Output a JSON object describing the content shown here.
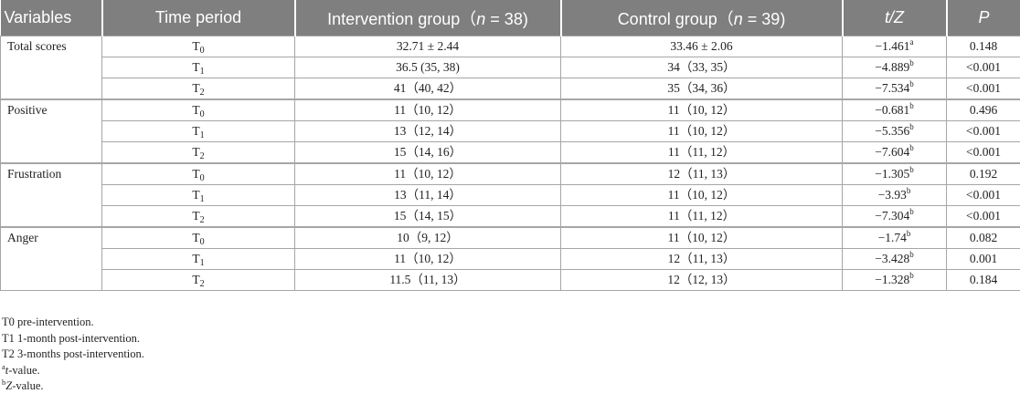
{
  "headers": {
    "variables": "Variables",
    "time_period": "Time period",
    "intervention": "Intervention group（",
    "intervention_n": "n",
    "intervention_count": " = 38)",
    "control": "Control group（",
    "control_n": "n",
    "control_count": " = 39)",
    "tz": "t/Z",
    "p": "P"
  },
  "groups": [
    {
      "name": "Total scores",
      "rows": [
        {
          "t": "T",
          "tsub": "0",
          "intervention": "32.71 ± 2.44",
          "control": "33.46 ± 2.06",
          "tz": "−1.461",
          "tzsup": "a",
          "p": "0.148"
        },
        {
          "t": "T",
          "tsub": "1",
          "intervention": "36.5 (35, 38)",
          "control": "34（33, 35）",
          "tz": "−4.889",
          "tzsup": "b",
          "p": "<0.001"
        },
        {
          "t": "T",
          "tsub": "2",
          "intervention": "41（40, 42）",
          "control": "35（34, 36）",
          "tz": "−7.534",
          "tzsup": "b",
          "p": "<0.001"
        }
      ]
    },
    {
      "name": "Positive",
      "rows": [
        {
          "t": "T",
          "tsub": "0",
          "intervention": "11（10, 12）",
          "control": "11（10, 12）",
          "tz": "−0.681",
          "tzsup": "b",
          "p": "0.496"
        },
        {
          "t": "T",
          "tsub": "1",
          "intervention": "13（12, 14）",
          "control": "11（10, 12）",
          "tz": "−5.356",
          "tzsup": "b",
          "p": "<0.001"
        },
        {
          "t": "T",
          "tsub": "2",
          "intervention": "15（14, 16）",
          "control": "11（11, 12）",
          "tz": "−7.604",
          "tzsup": "b",
          "p": "<0.001"
        }
      ]
    },
    {
      "name": "Frustration",
      "rows": [
        {
          "t": "T",
          "tsub": "0",
          "intervention": "11（10, 12）",
          "control": "12（11, 13）",
          "tz": "−1.305",
          "tzsup": "b",
          "p": "0.192"
        },
        {
          "t": "T",
          "tsub": "1",
          "intervention": "13（11, 14）",
          "control": "11（10, 12）",
          "tz": "−3.93",
          "tzsup": "b",
          "p": "<0.001"
        },
        {
          "t": "T",
          "tsub": "2",
          "intervention": "15（14, 15）",
          "control": "11（11, 12）",
          "tz": "−7.304",
          "tzsup": "b",
          "p": "<0.001"
        }
      ]
    },
    {
      "name": "Anger",
      "rows": [
        {
          "t": "T",
          "tsub": "0",
          "intervention": "10（9, 12）",
          "control": "11（10, 12）",
          "tz": "−1.74",
          "tzsup": "b",
          "p": "0.082"
        },
        {
          "t": "T",
          "tsub": "1",
          "intervention": "11（10, 12）",
          "control": "12（11, 13）",
          "tz": "−3.428",
          "tzsup": "b",
          "p": "0.001"
        },
        {
          "t": "T",
          "tsub": "2",
          "intervention": "11.5（11, 13）",
          "control": "12（12, 13）",
          "tz": "−1.328",
          "tzsup": "b",
          "p": "0.184"
        }
      ]
    }
  ],
  "notes": {
    "t0": "T0 pre-intervention.",
    "t1": "T1 1-month post-intervention.",
    "t2": "T2 3-months post-intervention.",
    "a_sup": "a",
    "a_var": "t",
    "a_text": "-value.",
    "b_sup": "b",
    "b_var": "Z",
    "b_text": "-value."
  }
}
